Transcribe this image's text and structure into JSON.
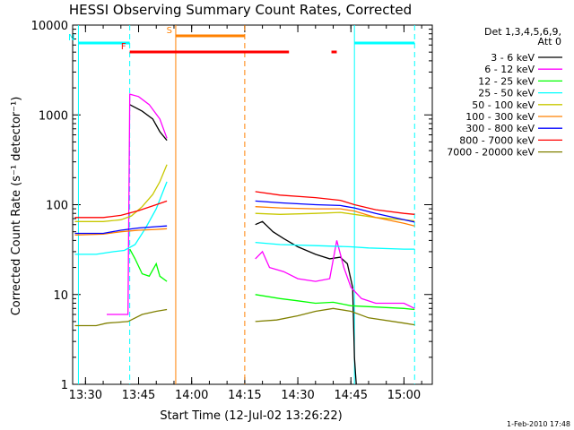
{
  "chart_data": {
    "type": "line",
    "title": "HESSI Observing Summary Count Rates, Corrected",
    "xlabel": "Start Time (12-Jul-02 13:26:22)",
    "ylabel": "Corrected Count Rate (s⁻¹ detector⁻¹)",
    "yscale": "log",
    "ylim": [
      1,
      10000
    ],
    "xlim": [
      "13:26:22",
      "15:08:00"
    ],
    "x_ticks": [
      "13:30",
      "13:45",
      "14:00",
      "14:15",
      "14:30",
      "14:45",
      "15:00"
    ],
    "y_ticks": [
      "1",
      "10",
      "100",
      "1000",
      "10000"
    ],
    "legend_header": [
      "Det 1,3,4,5,6,9,",
      "Att 0"
    ],
    "date_stamp": "1-Feb-2010 17:48",
    "flags": [
      {
        "label": "N",
        "color": "#00ffff",
        "segments": [
          [
            "13:28:00",
            "13:42:30"
          ],
          [
            "14:46:00",
            "15:03:00"
          ]
        ]
      },
      {
        "label": "S",
        "color": "#ff8000",
        "segments": [
          [
            "13:55:30",
            "14:15:00"
          ]
        ]
      },
      {
        "label": "F",
        "color": "#ff0000",
        "segments": [
          [
            "13:42:30",
            "14:27:30"
          ],
          [
            "14:39:30",
            "14:41:00"
          ]
        ]
      }
    ],
    "markers": [
      {
        "time": "13:28:00",
        "color": "#00ffff",
        "style": "solid"
      },
      {
        "time": "13:42:30",
        "color": "#00ffff",
        "style": "dashed"
      },
      {
        "time": "13:55:30",
        "color": "#ff8000",
        "style": "solid"
      },
      {
        "time": "14:15:00",
        "color": "#ff8000",
        "style": "dashed"
      },
      {
        "time": "14:46:00",
        "color": "#00ffff",
        "style": "solid"
      },
      {
        "time": "15:03:00",
        "color": "#00ffff",
        "style": "dashed"
      }
    ],
    "series": [
      {
        "name": "3 - 6 keV",
        "color": "#000000",
        "segments": [
          [
            [
              "13:42:30",
              1300
            ],
            [
              "13:46:00",
              1100
            ],
            [
              "13:49:00",
              900
            ],
            [
              "13:51:00",
              650
            ],
            [
              "13:53:00",
              520
            ]
          ],
          [
            [
              "14:18:00",
              60
            ],
            [
              "14:20:00",
              65
            ],
            [
              "14:23:00",
              50
            ],
            [
              "14:26:00",
              42
            ],
            [
              "14:30:00",
              34
            ],
            [
              "14:35:00",
              28
            ],
            [
              "14:39:00",
              25
            ],
            [
              "14:42:00",
              26
            ],
            [
              "14:44:00",
              22
            ],
            [
              "14:45:30",
              12
            ],
            [
              "14:46:00",
              2
            ],
            [
              "14:46:30",
              1
            ]
          ]
        ]
      },
      {
        "name": "6 - 12 keV",
        "color": "#ff00ff",
        "segments": [
          [
            [
              "13:36:00",
              6
            ],
            [
              "13:42:00",
              6
            ],
            [
              "13:42:30",
              1700
            ],
            [
              "13:45:00",
              1600
            ],
            [
              "13:48:00",
              1300
            ],
            [
              "13:51:00",
              900
            ],
            [
              "13:53:00",
              550
            ]
          ],
          [
            [
              "14:18:00",
              25
            ],
            [
              "14:20:00",
              30
            ],
            [
              "14:22:00",
              20
            ],
            [
              "14:26:00",
              18
            ],
            [
              "14:30:00",
              15
            ],
            [
              "14:35:00",
              14
            ],
            [
              "14:39:00",
              15
            ],
            [
              "14:41:00",
              40
            ],
            [
              "14:43:00",
              20
            ],
            [
              "14:45:00",
              12
            ],
            [
              "14:48:00",
              9
            ],
            [
              "14:52:00",
              8
            ],
            [
              "15:00:00",
              8
            ],
            [
              "15:03:00",
              7
            ]
          ]
        ]
      },
      {
        "name": "12 - 25 keV",
        "color": "#00ff00",
        "segments": [
          [
            [
              "13:42:30",
              32
            ],
            [
              "13:44:00",
              25
            ],
            [
              "13:46:00",
              17
            ],
            [
              "13:48:00",
              16
            ],
            [
              "13:50:00",
              22
            ],
            [
              "13:51:00",
              16
            ],
            [
              "13:53:00",
              14
            ]
          ],
          [
            [
              "14:18:00",
              10
            ],
            [
              "14:25:00",
              9
            ],
            [
              "14:30:00",
              8.5
            ],
            [
              "14:35:00",
              8
            ],
            [
              "14:40:00",
              8.2
            ],
            [
              "14:45:00",
              7.5
            ],
            [
              "15:00:00",
              7
            ],
            [
              "15:03:00",
              6.8
            ]
          ]
        ]
      },
      {
        "name": "25 - 50 keV",
        "color": "#00ffff",
        "segments": [
          [
            [
              "13:27:00",
              28
            ],
            [
              "13:33:00",
              28
            ],
            [
              "13:38:00",
              30
            ],
            [
              "13:41:00",
              31
            ],
            [
              "13:44:00",
              36
            ],
            [
              "13:47:00",
              55
            ],
            [
              "13:50:00",
              90
            ],
            [
              "13:53:00",
              180
            ]
          ],
          [
            [
              "14:18:00",
              38
            ],
            [
              "14:25:00",
              36
            ],
            [
              "14:35:00",
              35
            ],
            [
              "14:45:00",
              34
            ],
            [
              "14:50:00",
              33
            ],
            [
              "15:00:00",
              32
            ],
            [
              "15:03:00",
              32
            ]
          ]
        ]
      },
      {
        "name": "50 - 100 keV",
        "color": "#c8c800",
        "segments": [
          [
            [
              "13:27:00",
              65
            ],
            [
              "13:35:00",
              65
            ],
            [
              "13:40:00",
              68
            ],
            [
              "13:43:00",
              75
            ],
            [
              "13:46:00",
              95
            ],
            [
              "13:49:00",
              130
            ],
            [
              "13:51:00",
              180
            ],
            [
              "13:53:00",
              280
            ]
          ],
          [
            [
              "14:18:00",
              80
            ],
            [
              "14:25:00",
              78
            ],
            [
              "14:35:00",
              80
            ],
            [
              "14:42:00",
              82
            ],
            [
              "14:46:00",
              78
            ],
            [
              "14:52:00",
              72
            ],
            [
              "15:00:00",
              68
            ],
            [
              "15:03:00",
              66
            ]
          ]
        ]
      },
      {
        "name": "100 - 300 keV",
        "color": "#ff8000",
        "segments": [
          [
            [
              "13:27:00",
              46
            ],
            [
              "13:35:00",
              47
            ],
            [
              "13:40:00",
              50
            ],
            [
              "13:45:00",
              52
            ],
            [
              "13:50:00",
              53
            ],
            [
              "13:53:00",
              54
            ]
          ],
          [
            [
              "14:18:00",
              95
            ],
            [
              "14:25:00",
              92
            ],
            [
              "14:35:00",
              90
            ],
            [
              "14:42:00",
              90
            ],
            [
              "14:46:00",
              85
            ],
            [
              "14:52:00",
              72
            ],
            [
              "15:00:00",
              62
            ],
            [
              "15:03:00",
              58
            ]
          ]
        ]
      },
      {
        "name": "300 - 800 keV",
        "color": "#0000ff",
        "segments": [
          [
            [
              "13:27:00",
              48
            ],
            [
              "13:35:00",
              48
            ],
            [
              "13:40:00",
              52
            ],
            [
              "13:45:00",
              55
            ],
            [
              "13:50:00",
              57
            ],
            [
              "13:53:00",
              58
            ]
          ],
          [
            [
              "14:18:00",
              110
            ],
            [
              "14:25:00",
              105
            ],
            [
              "14:35:00",
              100
            ],
            [
              "14:42:00",
              98
            ],
            [
              "14:46:00",
              92
            ],
            [
              "14:52:00",
              80
            ],
            [
              "15:00:00",
              68
            ],
            [
              "15:03:00",
              64
            ]
          ]
        ]
      },
      {
        "name": "800 - 7000 keV",
        "color": "#ff0000",
        "segments": [
          [
            [
              "13:27:00",
              72
            ],
            [
              "13:35:00",
              72
            ],
            [
              "13:40:00",
              76
            ],
            [
              "13:45:00",
              86
            ],
            [
              "13:50:00",
              100
            ],
            [
              "13:53:00",
              110
            ]
          ],
          [
            [
              "14:18:00",
              140
            ],
            [
              "14:25:00",
              128
            ],
            [
              "14:35:00",
              120
            ],
            [
              "14:42:00",
              112
            ],
            [
              "14:46:00",
              100
            ],
            [
              "14:52:00",
              88
            ],
            [
              "15:00:00",
              80
            ],
            [
              "15:03:00",
              78
            ]
          ]
        ]
      },
      {
        "name": "7000 - 20000 keV",
        "color": "#808000",
        "segments": [
          [
            [
              "13:27:00",
              4.5
            ],
            [
              "13:33:00",
              4.5
            ],
            [
              "13:36:00",
              4.8
            ],
            [
              "13:42:00",
              5
            ],
            [
              "13:46:00",
              6
            ],
            [
              "13:50:00",
              6.5
            ],
            [
              "13:53:00",
              6.8
            ]
          ],
          [
            [
              "14:18:00",
              5
            ],
            [
              "14:24:00",
              5.2
            ],
            [
              "14:30:00",
              5.8
            ],
            [
              "14:35:00",
              6.5
            ],
            [
              "14:40:00",
              7
            ],
            [
              "14:45:00",
              6.5
            ],
            [
              "14:50:00",
              5.5
            ],
            [
              "15:00:00",
              4.8
            ],
            [
              "15:03:00",
              4.6
            ]
          ]
        ]
      }
    ]
  }
}
